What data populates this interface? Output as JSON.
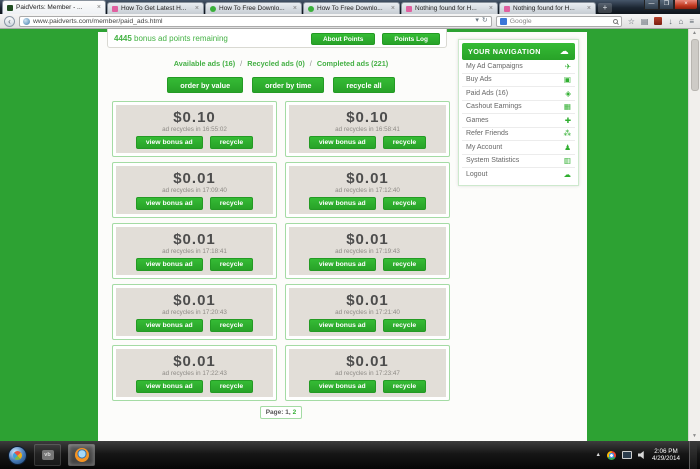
{
  "browser": {
    "tabs": [
      {
        "title": "PaidVerts: Member - ...",
        "active": true,
        "favicon_color": "#1f4d1f",
        "favicon_shape": "square"
      },
      {
        "title": "How To Get Latest H...",
        "active": false,
        "favicon_color": "#e060a0",
        "favicon_shape": "square"
      },
      {
        "title": "How To Free Downlo...",
        "active": false,
        "favicon_color": "#3ab03a",
        "favicon_shape": "circle"
      },
      {
        "title": "How To Free Downlo...",
        "active": false,
        "favicon_color": "#3ab03a",
        "favicon_shape": "circle"
      },
      {
        "title": "Nothing found for H...",
        "active": false,
        "favicon_color": "#e060a0",
        "favicon_shape": "square"
      },
      {
        "title": "Nothing found for H...",
        "active": false,
        "favicon_color": "#e060a0",
        "favicon_shape": "square"
      }
    ],
    "new_tab_label": "+",
    "url": "www.paidverts.com/member/paid_ads.html",
    "search_value": "Google"
  },
  "icons": {
    "back": "‹",
    "url_dropdown": "▾",
    "reload": "↻",
    "tab_close": "×",
    "bookmark_star": "☆",
    "history": "▤",
    "downloads": "↓",
    "home": "⌂",
    "menu": "≡",
    "window_min": "—",
    "window_max": "❐",
    "window_close": "×",
    "scroll_up": "▲",
    "scroll_down": "▼",
    "tray_up": "▲",
    "cloud": "☁",
    "app2": "vb"
  },
  "header": {
    "bonus_points": "4445",
    "bonus_text": " bonus ad points remaining",
    "about_points_label": "About Points",
    "points_log_label": "Points Log"
  },
  "filters": {
    "available": "Available ads (16)",
    "recycled": "Recycled ads (0)",
    "completed": "Completed ads (221)",
    "separator": "/"
  },
  "sort": {
    "order_by_value": "order by value",
    "order_by_time": "order by time",
    "recycle_all": "recycle all"
  },
  "strings": {
    "recycles_prefix": "ad recycles in",
    "view_bonus": "view bonus ad",
    "recycle": "recycle"
  },
  "ads": [
    {
      "price": "$0.10",
      "time": "16:55:02"
    },
    {
      "price": "$0.10",
      "time": "16:58:41"
    },
    {
      "price": "$0.01",
      "time": "17:09:40"
    },
    {
      "price": "$0.01",
      "time": "17:12:40"
    },
    {
      "price": "$0.01",
      "time": "17:18:41"
    },
    {
      "price": "$0.01",
      "time": "17:19:43"
    },
    {
      "price": "$0.01",
      "time": "17:20:43"
    },
    {
      "price": "$0.01",
      "time": "17:21:40"
    },
    {
      "price": "$0.01",
      "time": "17:22:43"
    },
    {
      "price": "$0.01",
      "time": "17:23:47"
    }
  ],
  "pager": {
    "label": "Page:",
    "current": "1,",
    "next": "2"
  },
  "sidebar": {
    "title": "YOUR NAVIGATION",
    "items": [
      {
        "id": "my-ad-campaigns",
        "label": "My Ad Campaigns",
        "glyph": "✈"
      },
      {
        "id": "buy-ads",
        "label": "Buy Ads",
        "glyph": "▣"
      },
      {
        "id": "paid-ads",
        "label": "Paid Ads (16)",
        "glyph": "◈"
      },
      {
        "id": "cashout-earnings",
        "label": "Cashout Earnings",
        "glyph": "▦"
      },
      {
        "id": "games",
        "label": "Games",
        "glyph": "✚"
      },
      {
        "id": "refer-friends",
        "label": "Refer Friends",
        "glyph": "⁂"
      },
      {
        "id": "my-account",
        "label": "My Account",
        "glyph": "♟"
      },
      {
        "id": "system-statistics",
        "label": "System Statistics",
        "glyph": "▥"
      },
      {
        "id": "logout",
        "label": "Logout",
        "glyph": "☁"
      }
    ]
  },
  "taskbar": {
    "time": "2:06 PM",
    "date": "4/29/2014"
  },
  "colors": {
    "page_green": "#2da233",
    "button_green": "#2eb22e",
    "link_green": "#45b045"
  }
}
